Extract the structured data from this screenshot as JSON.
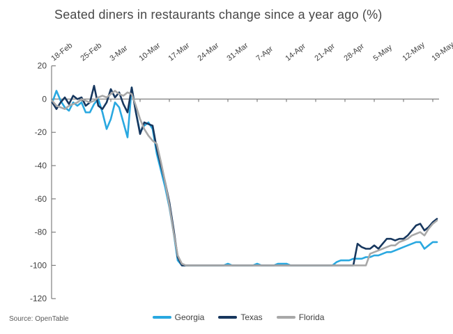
{
  "title": "Seated diners in restaurants change since a year ago (%)",
  "source": "Source: OpenTable",
  "colors": {
    "georgia": "#29A8E0",
    "texas": "#17375E",
    "florida": "#A8A8A8",
    "axis": "#7F7F7F",
    "text": "#404040"
  },
  "chart_data": {
    "type": "line",
    "title": "Seated diners in restaurants change since a year ago (%)",
    "x_unit": "daily, 18-Feb-2020 to 20-May-2020",
    "x_tick_labels": [
      "18-Feb",
      "25-Feb",
      "3-Mar",
      "10-Mar",
      "17-Mar",
      "24-Mar",
      "31-Mar",
      "7-Apr",
      "14-Apr",
      "21-Apr",
      "28-Apr",
      "5-May",
      "12-May",
      "19-May"
    ],
    "days_per_tick": 7,
    "y_ticks": [
      20,
      0,
      -20,
      -40,
      -60,
      -80,
      -100,
      -120
    ],
    "ylim": [
      -120,
      20
    ],
    "grid": "off",
    "legend_position": "bottom",
    "series": [
      {
        "name": "Georgia",
        "color": "#29A8E0",
        "values": [
          -2,
          5,
          -1,
          -5,
          -7,
          -2,
          -4,
          -2,
          -8,
          -8,
          -3,
          0,
          -8,
          -18,
          -12,
          -2,
          -5,
          -14,
          -23,
          7,
          -8,
          -20,
          -16,
          -14,
          -18,
          -33,
          -43,
          -53,
          -65,
          -80,
          -97,
          -100,
          -100,
          -100,
          -100,
          -100,
          -100,
          -100,
          -100,
          -100,
          -100,
          -100,
          -99,
          -100,
          -100,
          -100,
          -100,
          -100,
          -100,
          -99,
          -100,
          -100,
          -100,
          -100,
          -99,
          -99,
          -99,
          -100,
          -100,
          -100,
          -100,
          -100,
          -100,
          -100,
          -100,
          -100,
          -100,
          -100,
          -98,
          -97,
          -97,
          -97,
          -96,
          -96,
          -96,
          -95,
          -95,
          -94,
          -94,
          -93,
          -92,
          -92,
          -91,
          -90,
          -89,
          -88,
          -87,
          -86,
          -86,
          -90,
          -88,
          -86,
          -86
        ]
      },
      {
        "name": "Texas",
        "color": "#17375E",
        "values": [
          -2,
          -6,
          -2,
          1,
          -3,
          2,
          0,
          1,
          -4,
          -2,
          8,
          -4,
          -6,
          -2,
          6,
          1,
          4,
          -3,
          -8,
          7,
          -8,
          -21,
          -14,
          -15,
          -16,
          -30,
          -40,
          -50,
          -62,
          -78,
          -95,
          -100,
          -100,
          -100,
          -100,
          -100,
          -100,
          -100,
          -100,
          -100,
          -100,
          -100,
          -100,
          -100,
          -100,
          -100,
          -100,
          -100,
          -100,
          -100,
          -100,
          -100,
          -100,
          -100,
          -100,
          -100,
          -100,
          -100,
          -100,
          -100,
          -100,
          -100,
          -100,
          -100,
          -100,
          -100,
          -100,
          -100,
          -100,
          -100,
          -100,
          -100,
          -100,
          -87,
          -89,
          -90,
          -90,
          -88,
          -90,
          -87,
          -84,
          -84,
          -85,
          -84,
          -84,
          -82,
          -79,
          -76,
          -75,
          -79,
          -77,
          -74,
          -72
        ]
      },
      {
        "name": "Florida",
        "color": "#A8A8A8",
        "values": [
          -1,
          -4,
          -5,
          -6,
          -4,
          -3,
          -2,
          0,
          -1,
          -2,
          -1,
          1,
          2,
          1,
          3,
          5,
          3,
          2,
          4,
          3,
          -4,
          -12,
          -18,
          -22,
          -25,
          -27,
          -38,
          -50,
          -64,
          -80,
          -94,
          -99,
          -100,
          -100,
          -100,
          -100,
          -100,
          -100,
          -100,
          -100,
          -100,
          -100,
          -100,
          -100,
          -100,
          -100,
          -100,
          -100,
          -100,
          -100,
          -100,
          -100,
          -100,
          -100,
          -100,
          -100,
          -100,
          -100,
          -100,
          -100,
          -100,
          -100,
          -100,
          -100,
          -100,
          -100,
          -100,
          -100,
          -100,
          -100,
          -100,
          -100,
          -100,
          -100,
          -100,
          -100,
          -93,
          -92,
          -91,
          -90,
          -89,
          -88,
          -88,
          -86,
          -85,
          -84,
          -82,
          -81,
          -80,
          -82,
          -78,
          -75,
          -73
        ]
      }
    ]
  }
}
